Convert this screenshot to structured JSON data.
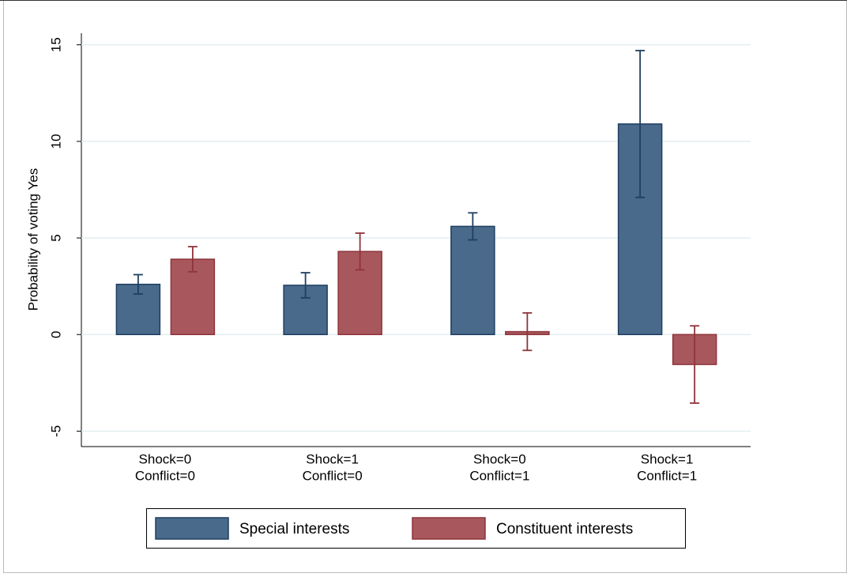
{
  "chart_data": {
    "type": "bar",
    "y_label": "Probability of voting Yes",
    "categories": [
      [
        "Shock=0",
        "Conflict=0"
      ],
      [
        "Shock=1",
        "Conflict=0"
      ],
      [
        "Shock=0",
        "Conflict=1"
      ],
      [
        "Shock=1",
        "Conflict=1"
      ]
    ],
    "series": [
      {
        "name": "Special interests",
        "color": "#4a6a8c",
        "values": [
          2.6,
          2.55,
          5.6,
          10.9
        ],
        "errors": [
          0.5,
          0.65,
          0.7,
          3.8
        ]
      },
      {
        "name": "Constituent interests",
        "color": "#a8585d",
        "values": [
          3.9,
          4.3,
          0.15,
          -1.55
        ],
        "errors": [
          0.65,
          0.95,
          0.97,
          2.0
        ]
      }
    ],
    "ylim": [
      -5.8,
      15.6
    ],
    "yticks": [
      -5,
      0,
      5,
      10,
      15
    ],
    "grid": true,
    "legend": "bottom"
  }
}
